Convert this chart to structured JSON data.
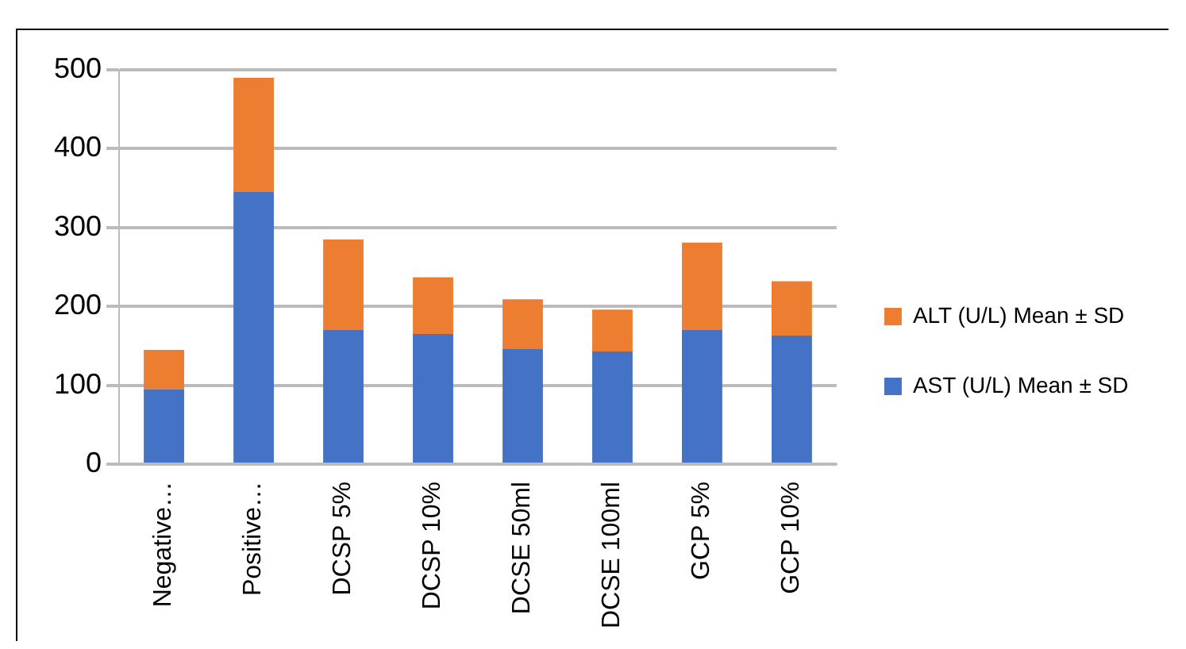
{
  "chart_data": {
    "type": "bar",
    "stacked": true,
    "categories": [
      "Negative…",
      "Positive…",
      "DCSP 5%",
      "DCSP 10%",
      "DCSE 50ml",
      "DCSE 100ml",
      "GCP 5%",
      "GCP 10%"
    ],
    "series": [
      {
        "name": "AST (U/L) Mean ± SD",
        "color": "#4472c4",
        "values": [
          95,
          345,
          170,
          165,
          146,
          143,
          170,
          163
        ]
      },
      {
        "name": "ALT (U/L) Mean ± SD",
        "color": "#ed7d31",
        "values": [
          50,
          145,
          115,
          72,
          63,
          53,
          111,
          69
        ]
      }
    ],
    "ylim": [
      0,
      500
    ],
    "yticks": [
      0,
      100,
      200,
      300,
      400,
      500
    ],
    "grid": "y",
    "legend": "right"
  }
}
